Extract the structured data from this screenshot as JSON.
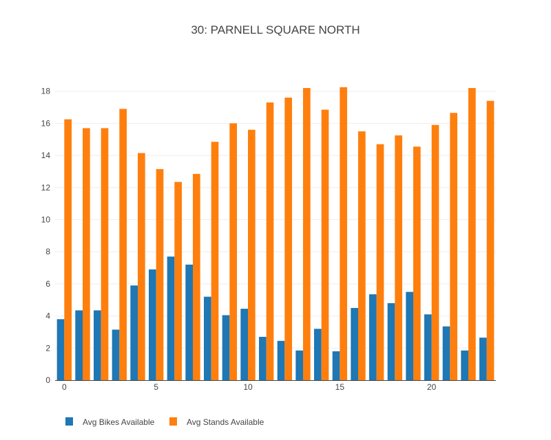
{
  "chart_data": {
    "type": "bar",
    "title": "30: PARNELL SQUARE NORTH",
    "xlabel": "",
    "ylabel": "",
    "x": [
      0,
      1,
      2,
      3,
      4,
      5,
      6,
      7,
      8,
      9,
      10,
      11,
      12,
      13,
      14,
      15,
      16,
      17,
      18,
      19,
      20,
      21,
      22,
      23
    ],
    "x_ticks": [
      "0",
      "5",
      "10",
      "15",
      "20"
    ],
    "y_ticks": [
      "0",
      "2",
      "4",
      "6",
      "8",
      "10",
      "12",
      "14",
      "16",
      "18"
    ],
    "ylim": [
      0,
      19.4
    ],
    "xlim": [
      -0.5,
      23.5
    ],
    "grid": true,
    "legend_position": "bottom-left",
    "series": [
      {
        "name": "Avg Bikes Available",
        "color": "#1f77b4",
        "values": [
          3.8,
          4.35,
          4.35,
          3.15,
          5.9,
          6.9,
          7.7,
          7.2,
          5.2,
          4.05,
          4.45,
          2.7,
          2.45,
          1.85,
          3.2,
          1.8,
          4.5,
          5.35,
          4.8,
          5.5,
          4.1,
          3.35,
          1.85,
          2.65
        ]
      },
      {
        "name": "Avg Stands Available",
        "color": "#ff7f0e",
        "values": [
          16.25,
          15.7,
          15.7,
          16.9,
          14.15,
          13.15,
          12.35,
          12.85,
          14.85,
          16.0,
          15.6,
          17.3,
          17.6,
          18.2,
          16.85,
          18.25,
          15.5,
          14.7,
          15.25,
          14.55,
          15.9,
          16.65,
          18.2,
          17.4
        ]
      }
    ]
  }
}
